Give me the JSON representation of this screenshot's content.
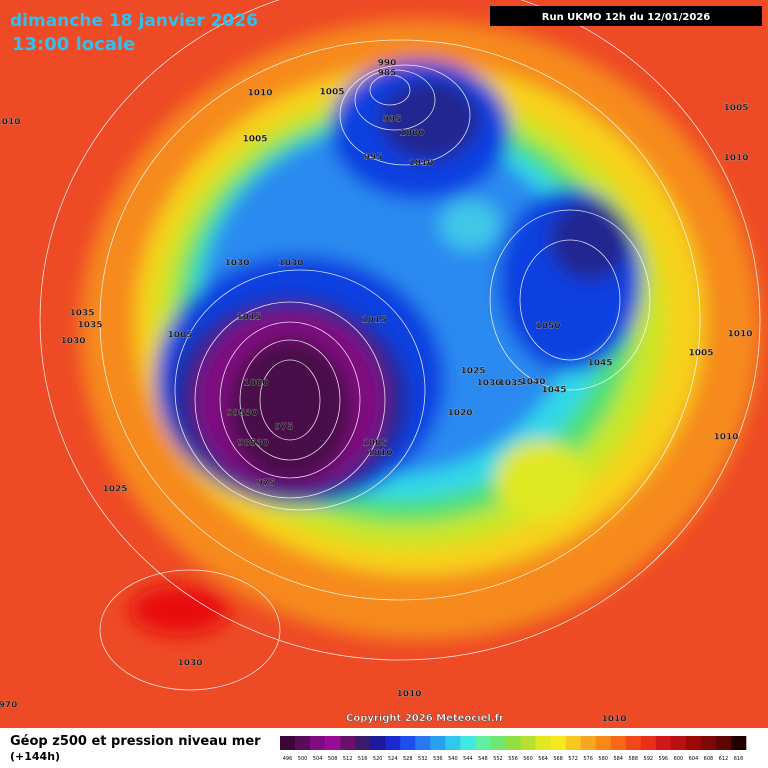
{
  "header": {
    "date": "dimanche 18 janvier 2026",
    "time": "13:00 locale",
    "run": "Run UKMO 12h du 12/01/2026"
  },
  "isobar_labels": [
    "990",
    "985",
    "1010",
    "1005",
    "1005",
    "995",
    "1000",
    "995",
    "1010",
    "1005",
    "1010",
    "1010",
    "1030",
    "1030",
    "1035",
    "1035",
    "1030",
    "1005",
    "1015",
    "1015",
    "1050",
    "1045",
    "1005",
    "1010",
    "1025",
    "1030",
    "1035",
    "1040",
    "1045",
    "1000",
    "99530",
    "975",
    "98530",
    "975",
    "1020",
    "1005",
    "1010",
    "1010",
    "1025",
    "1030",
    "1010",
    "1010",
    "970"
  ],
  "copyright": "Copyright 2026 Meteociel.fr",
  "legend": {
    "title": "Géop z500 et pression niveau mer",
    "subtitle": "(+144h)",
    "levels": [
      496,
      500,
      504,
      508,
      512,
      516,
      520,
      524,
      528,
      532,
      536,
      540,
      544,
      548,
      552,
      556,
      560,
      564,
      568,
      572,
      576,
      580,
      584,
      588,
      592,
      596,
      600,
      604,
      608,
      612,
      616
    ],
    "colors": [
      "#3a0838",
      "#5a0a5a",
      "#800a80",
      "#980a98",
      "#6a106a",
      "#3a1a6a",
      "#1a1a9a",
      "#1a2ad0",
      "#1a50f0",
      "#2a78f0",
      "#2aa0f0",
      "#30c8f0",
      "#40e8e0",
      "#60f0a0",
      "#70e870",
      "#90e040",
      "#b8e030",
      "#e0e820",
      "#f8e820",
      "#f8c820",
      "#f8a820",
      "#f88818",
      "#f86818",
      "#f04818",
      "#e83018",
      "#d01818",
      "#b81010",
      "#a00808",
      "#800808",
      "#600404",
      "#200000"
    ]
  }
}
